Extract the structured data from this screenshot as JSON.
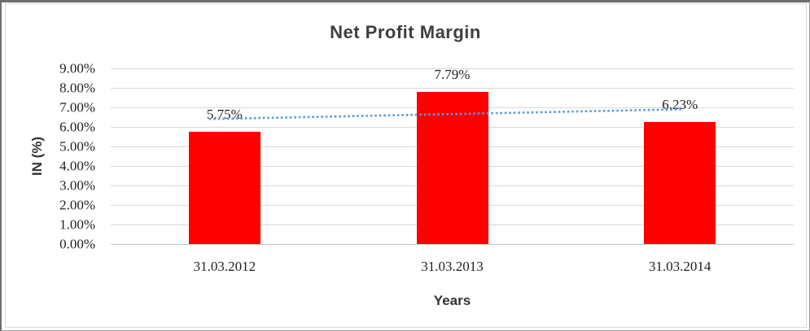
{
  "chart_data": {
    "type": "bar",
    "title": "Net Profit Margin",
    "xlabel": "Years",
    "ylabel": "IN (%)",
    "categories": [
      "31.03.2012",
      "31.03.2013",
      "31.03.2014"
    ],
    "values": [
      5.75,
      7.79,
      6.23
    ],
    "data_labels": [
      "5.75%",
      "7.79%",
      "6.23%"
    ],
    "ylim": [
      0,
      9
    ],
    "ytick_step": 1,
    "ytick_labels": [
      "0.00%",
      "1.00%",
      "2.00%",
      "3.00%",
      "4.00%",
      "5.00%",
      "6.00%",
      "7.00%",
      "8.00%",
      "9.00%"
    ],
    "grid": true,
    "legend": "none",
    "bar_color": "#FF0000",
    "gridline_color": "#D9D9D9",
    "trendline": {
      "type": "linear",
      "style": "dotted",
      "color": "#5B9BD5",
      "start_value": 6.4,
      "end_value": 6.9
    }
  }
}
